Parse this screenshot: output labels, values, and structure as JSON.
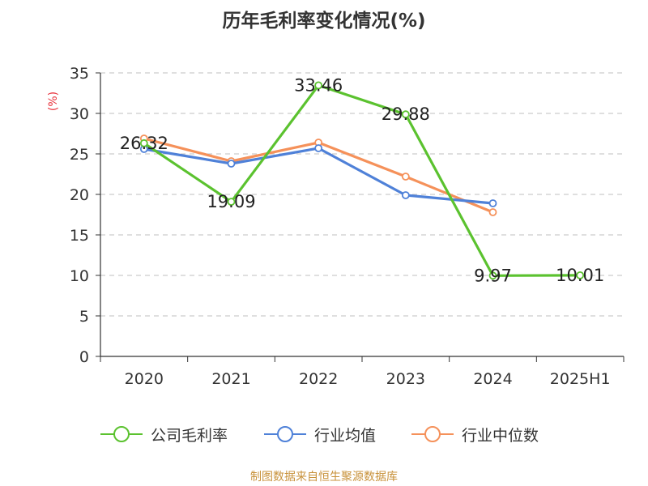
{
  "title": "历年毛利率变化情况(%)",
  "source_note": "制图数据来自恒生聚源数据库",
  "chart_data": {
    "type": "line",
    "title": "历年毛利率变化情况(%)",
    "ylabel": "(%)",
    "ylim": [
      0,
      35
    ],
    "yticks": [
      0,
      5,
      10,
      15,
      20,
      25,
      30,
      35
    ],
    "grid": true,
    "legend_position": "bottom",
    "categories": [
      "2020",
      "2021",
      "2022",
      "2023",
      "2024",
      "2025H1"
    ],
    "series": [
      {
        "name": "公司毛利率",
        "color": "#5bc22f",
        "values": [
          26.32,
          19.09,
          33.46,
          29.88,
          9.97,
          10.01
        ],
        "labels": [
          "26.32",
          "19.09",
          "33.46",
          "29.88",
          "9.97",
          "10.01"
        ]
      },
      {
        "name": "行业均值",
        "color": "#4f81d8",
        "values": [
          25.6,
          23.8,
          25.7,
          19.9,
          18.9,
          null
        ]
      },
      {
        "name": "行业中位数",
        "color": "#f5915a",
        "values": [
          26.9,
          24.1,
          26.4,
          22.2,
          17.8,
          null
        ]
      }
    ]
  }
}
